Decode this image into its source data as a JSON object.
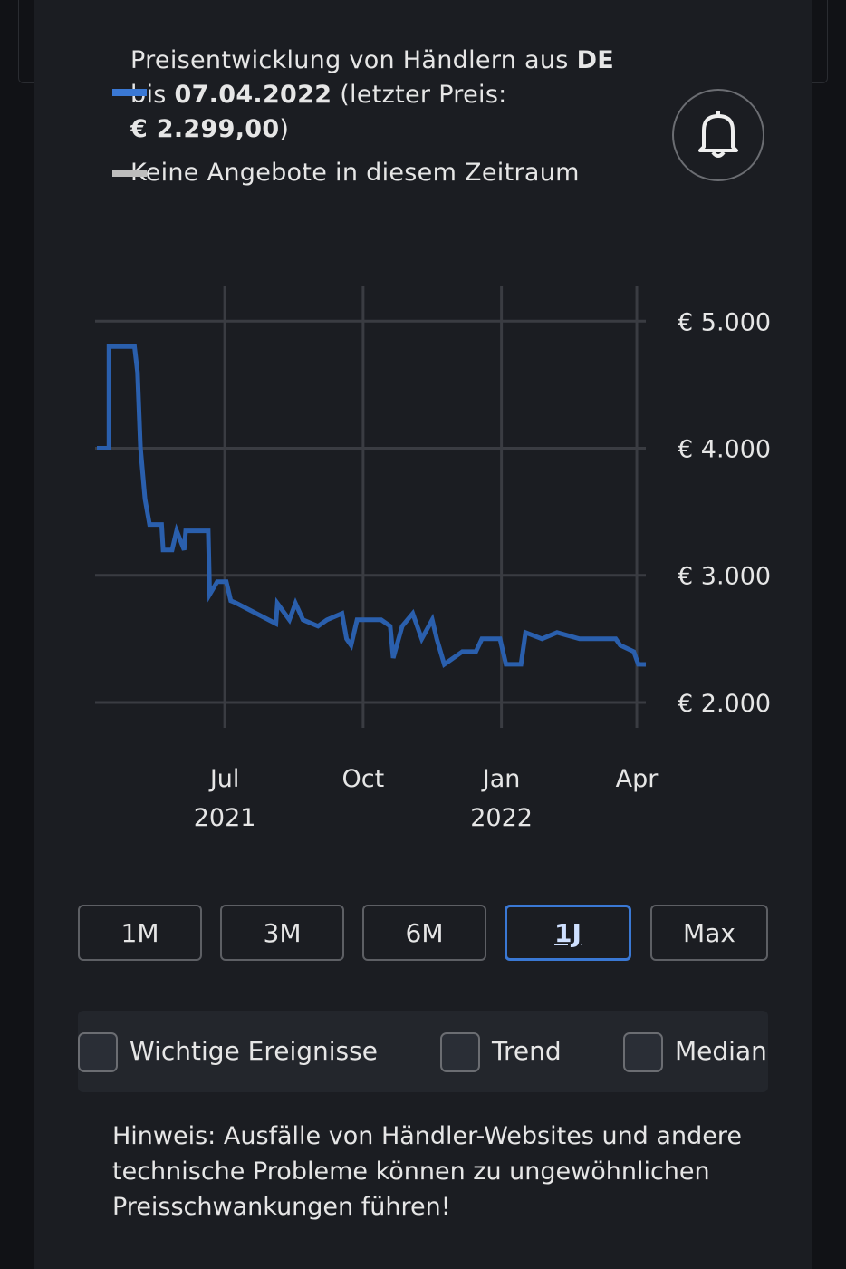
{
  "legend": {
    "line1": "Preisentwicklung von Händlern aus",
    "country": "DE",
    "until": "bis",
    "date": "07.04.2022",
    "last_price_label": "(letzter Preis:",
    "last_price": "€ 2.299,00",
    "close": ")",
    "no_offers": "Keine Angebote in diesem Zeitraum"
  },
  "chart_data": {
    "type": "line",
    "color": "#2a5fad",
    "x": [
      "2021-04-07",
      "2021-04-15",
      "2021-04-15",
      "2021-05-02",
      "2021-05-04",
      "2021-05-06",
      "2021-05-09",
      "2021-05-12",
      "2021-05-20",
      "2021-05-21",
      "2021-05-27",
      "2021-05-30",
      "2021-06-04",
      "2021-06-05",
      "2021-06-20",
      "2021-06-21",
      "2021-06-26",
      "2021-07-02",
      "2021-07-05",
      "2021-07-09",
      "2021-08-04",
      "2021-08-05",
      "2021-08-13",
      "2021-08-17",
      "2021-08-22",
      "2021-09-01",
      "2021-09-07",
      "2021-09-17",
      "2021-09-20",
      "2021-09-23",
      "2021-09-27",
      "2021-10-13",
      "2021-10-19",
      "2021-10-21",
      "2021-10-27",
      "2021-11-03",
      "2021-11-06",
      "2021-11-09",
      "2021-11-16",
      "2021-11-19",
      "2021-11-24",
      "2021-12-06",
      "2021-12-15",
      "2021-12-19",
      "2021-12-31",
      "2022-01-04",
      "2022-01-14",
      "2022-01-17",
      "2022-01-28",
      "2022-02-07",
      "2022-02-22",
      "2022-03-18",
      "2022-03-21",
      "2022-03-30",
      "2022-04-02",
      "2022-04-07"
    ],
    "values": [
      4000,
      4000,
      4800,
      4800,
      4600,
      4000,
      3600,
      3400,
      3400,
      3200,
      3200,
      3350,
      3200,
      3350,
      3350,
      2850,
      2950,
      2950,
      2800,
      2780,
      2620,
      2780,
      2650,
      2780,
      2650,
      2600,
      2650,
      2700,
      2500,
      2450,
      2650,
      2650,
      2600,
      2350,
      2600,
      2700,
      2600,
      2500,
      2650,
      2500,
      2300,
      2400,
      2400,
      2500,
      2500,
      2300,
      2300,
      2550,
      2500,
      2550,
      2500,
      2500,
      2450,
      2400,
      2300,
      2299
    ],
    "xlim": [
      "2021-04-07",
      "2022-04-07"
    ],
    "xticks": [
      {
        "value": "2021-07-01",
        "label": "Jul\n2021"
      },
      {
        "value": "2021-10-01",
        "label": "Oct"
      },
      {
        "value": "2022-01-01",
        "label": "Jan\n2022"
      },
      {
        "value": "2022-04-01",
        "label": "Apr"
      }
    ],
    "ylim": [
      1800,
      5280
    ],
    "yticks": [
      {
        "value": 2000,
        "label": "€ 2.000"
      },
      {
        "value": 3000,
        "label": "€ 3.000"
      },
      {
        "value": 4000,
        "label": "€ 4.000"
      },
      {
        "value": 5000,
        "label": "€ 5.000"
      }
    ],
    "grid": true
  },
  "range_buttons": [
    "1M",
    "3M",
    "6M",
    "1J",
    "Max"
  ],
  "selected_range": "1J",
  "checkboxes": [
    "Wichtige Ereignisse",
    "Trend",
    "Median"
  ],
  "note": "Hinweis: Ausfälle von Händler-Websites und andere technische Probleme können zu ungewöhnlichen Preisschwankungen führen!"
}
